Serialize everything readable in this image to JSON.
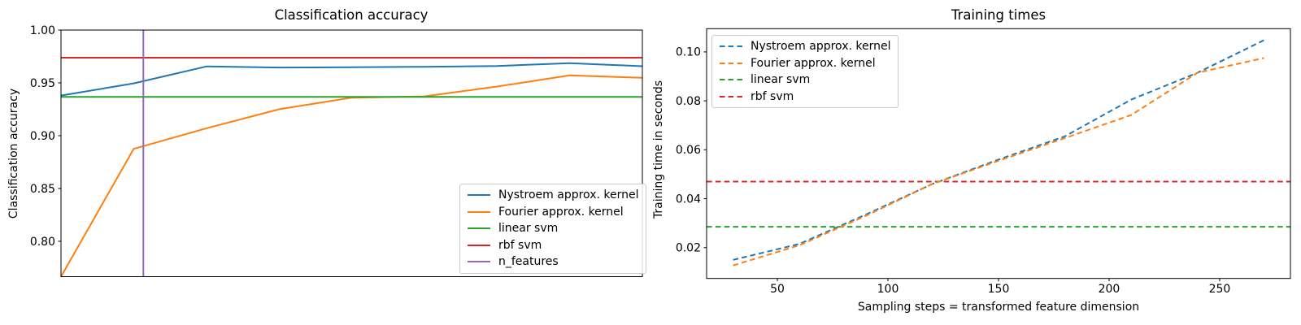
{
  "colors": {
    "blue": "#1f77b4",
    "orange": "#ff7f0e",
    "green": "#2ca02c",
    "red": "#d62728",
    "purple": "#9467bd",
    "axis": "#000000",
    "legend_border": "#cccccc"
  },
  "chart_data": [
    {
      "type": "line",
      "title": "Classification accuracy",
      "xlabel": "",
      "ylabel": "Classification accuracy",
      "x": [
        30,
        60,
        90,
        120,
        150,
        180,
        210,
        240,
        270
      ],
      "series": [
        {
          "name": "Nystroem approx. kernel",
          "color": "#1f77b4",
          "linestyle": "solid",
          "values": [
            0.938,
            0.9495,
            0.9655,
            0.9645,
            0.9648,
            0.9652,
            0.966,
            0.9687,
            0.9658
          ]
        },
        {
          "name": "Fourier approx. kernel",
          "color": "#ff7f0e",
          "linestyle": "solid",
          "values": [
            0.7665,
            0.8875,
            0.907,
            0.925,
            0.936,
            0.9372,
            0.9465,
            0.9571,
            0.9548
          ]
        }
      ],
      "hlines": [
        {
          "name": "linear svm",
          "color": "#2ca02c",
          "linestyle": "solid",
          "y": 0.9367
        },
        {
          "name": "rbf svm",
          "color": "#d62728",
          "linestyle": "solid",
          "y": 0.9738
        }
      ],
      "vlines": [
        {
          "name": "n_features",
          "color": "#9467bd",
          "linestyle": "solid",
          "x": 64
        }
      ],
      "xlim": [
        30,
        270
      ],
      "ylim": [
        0.7665,
        1.0
      ],
      "grid": false,
      "yticks": {
        "values": [
          1.0,
          0.95,
          0.9,
          0.85,
          0.8
        ],
        "labels": [
          "1.00",
          "0.95",
          "0.90",
          "0.85",
          "0.80"
        ]
      },
      "xticks": {
        "values": [],
        "labels": []
      },
      "legend": {
        "position": "lower right",
        "items": [
          {
            "label": "Nystroem approx. kernel",
            "color": "#1f77b4",
            "dashed": false
          },
          {
            "label": "Fourier approx. kernel",
            "color": "#ff7f0e",
            "dashed": false
          },
          {
            "label": "linear svm",
            "color": "#2ca02c",
            "dashed": false
          },
          {
            "label": "rbf svm",
            "color": "#d62728",
            "dashed": false
          },
          {
            "label": "n_features",
            "color": "#9467bd",
            "dashed": false
          }
        ]
      }
    },
    {
      "type": "line",
      "title": "Training times",
      "xlabel": "Sampling steps = transformed feature dimension",
      "ylabel": "Training time in seconds",
      "x": [
        30,
        60,
        90,
        120,
        150,
        180,
        210,
        240,
        270
      ],
      "series": [
        {
          "name": "Nystroem approx. kernel",
          "color": "#1f77b4",
          "linestyle": "dashed",
          "values": [
            0.015,
            0.0215,
            0.0335,
            0.046,
            0.056,
            0.0655,
            0.0805,
            0.0915,
            0.1048
          ]
        },
        {
          "name": "Fourier approx. kernel",
          "color": "#ff7f0e",
          "linestyle": "dashed",
          "values": [
            0.0127,
            0.021,
            0.033,
            0.046,
            0.0555,
            0.0648,
            0.0742,
            0.0915,
            0.0975
          ]
        }
      ],
      "hlines": [
        {
          "name": "linear svm",
          "color": "#2ca02c",
          "linestyle": "dashed",
          "y": 0.0285
        },
        {
          "name": "rbf svm",
          "color": "#d62728",
          "linestyle": "dashed",
          "y": 0.047
        }
      ],
      "vlines": [],
      "xlim": [
        18,
        282
      ],
      "ylim": [
        0.0074,
        0.1095
      ],
      "grid": false,
      "yticks": {
        "values": [
          0.02,
          0.04,
          0.06,
          0.08,
          0.1
        ],
        "labels": [
          "0.02",
          "0.04",
          "0.06",
          "0.08",
          "0.10"
        ]
      },
      "xticks": {
        "values": [
          50,
          100,
          150,
          200,
          250
        ],
        "labels": [
          "50",
          "100",
          "150",
          "200",
          "250"
        ]
      },
      "legend": {
        "position": "upper left",
        "items": [
          {
            "label": "Nystroem approx. kernel",
            "color": "#1f77b4",
            "dashed": true
          },
          {
            "label": "Fourier approx. kernel",
            "color": "#ff7f0e",
            "dashed": true
          },
          {
            "label": "linear svm",
            "color": "#2ca02c",
            "dashed": true
          },
          {
            "label": "rbf svm",
            "color": "#d62728",
            "dashed": true
          }
        ]
      }
    }
  ]
}
